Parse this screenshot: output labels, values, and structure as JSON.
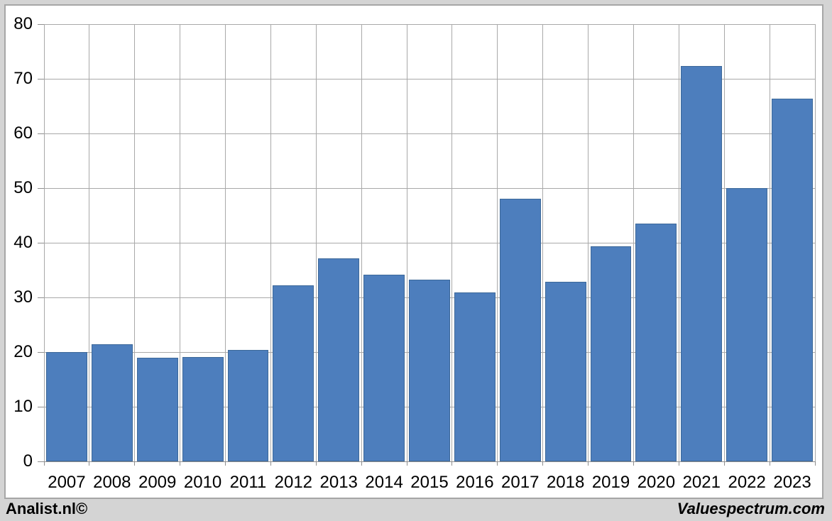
{
  "footer": {
    "left": "Analist.nl©",
    "right": "Valuespectrum.com"
  },
  "chart_data": {
    "type": "bar",
    "title": "",
    "xlabel": "",
    "ylabel": "",
    "categories": [
      "2007",
      "2008",
      "2009",
      "2010",
      "2011",
      "2012",
      "2013",
      "2014",
      "2015",
      "2016",
      "2017",
      "2018",
      "2019",
      "2020",
      "2021",
      "2022",
      "2023"
    ],
    "values": [
      20.0,
      21.4,
      18.9,
      19.1,
      20.4,
      32.2,
      37.1,
      34.2,
      33.2,
      30.9,
      48.0,
      32.9,
      39.4,
      43.5,
      72.3,
      50.0,
      66.3
    ],
    "ylim": [
      0,
      80
    ],
    "ytick_step": 10,
    "grid": true,
    "legend": false
  },
  "colors": {
    "bar_fill": "#4d7ebd",
    "bar_border": "#3c6899",
    "gridline": "#a9a9a9",
    "axis": "#8f8f8f",
    "text": "#000000",
    "panel_bg": "#ffffff",
    "panel_border": "#a6a6a6",
    "page_bg": "#d4d4d4"
  }
}
